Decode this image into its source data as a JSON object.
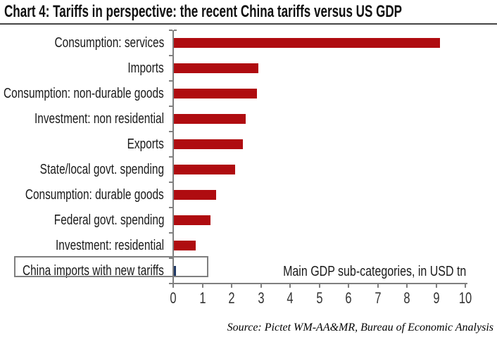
{
  "title": "Chart 4: Tariffs in perspective: the recent China tariffs versus US GDP",
  "source": "Source: Pictet WM-AA&MR, Bureau of Economic Analysis",
  "chart_data": {
    "type": "bar",
    "orientation": "horizontal",
    "title": "Chart 4: Tariffs in perspective: the recent China tariffs versus US GDP",
    "categories": [
      "Consumption: services",
      "Imports",
      "Consumption: non-durable goods",
      "Investment: non residential",
      "Exports",
      "State/local govt. spending",
      "Consumption: durable goods",
      "Federal govt. spending",
      "Investment: residential",
      "China imports with new tariffs"
    ],
    "values": [
      9.1,
      2.9,
      2.85,
      2.45,
      2.35,
      2.1,
      1.45,
      1.25,
      0.75,
      0.07
    ],
    "highlighted_category": "China imports with new tariffs",
    "annotation": "Main GDP sub-categories, in USD tn",
    "xlim": [
      0,
      10
    ],
    "xticks": [
      0,
      1,
      2,
      3,
      4,
      5,
      6,
      7,
      8,
      9,
      10
    ],
    "grid": false,
    "legend": false,
    "colors": {
      "bar": "#af0c10",
      "highlight_bar": "#1f3864",
      "axis": "#7f7f7f",
      "highlight_box_border": "#7f7f7f",
      "title_rule": "#454545",
      "text": "#1a1a1a"
    }
  }
}
